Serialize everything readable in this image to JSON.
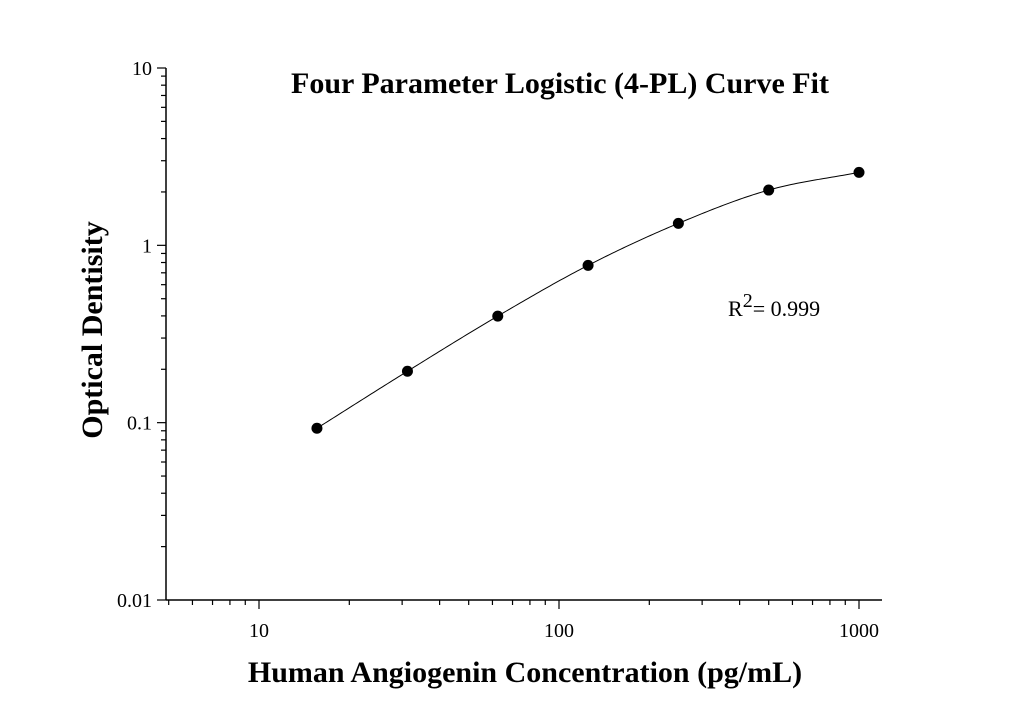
{
  "chart_data": {
    "type": "scatter",
    "title": "Four Parameter Logistic (4-PL) Curve Fit",
    "xlabel": "Human Angiogenin Concentration (pg/mL)",
    "ylabel": "Optical Dentisity",
    "x_scale": "log",
    "y_scale": "log",
    "xlim": [
      5,
      1050
    ],
    "ylim": [
      0.01,
      10
    ],
    "x_ticks": [
      10,
      100,
      1000
    ],
    "x_tick_labels": [
      "10",
      "100",
      "1000"
    ],
    "y_ticks": [
      0.01,
      0.1,
      1,
      10
    ],
    "y_tick_labels": [
      "0.01",
      "0.1",
      "1",
      "10"
    ],
    "grid": false,
    "legend": "none",
    "series": [
      {
        "x": [
          15.6,
          31.25,
          62.5,
          125,
          250,
          500,
          1000
        ],
        "y": [
          0.093,
          0.195,
          0.399,
          0.771,
          1.33,
          2.05,
          2.58
        ]
      }
    ],
    "fit_curve": {
      "model": "4-PL",
      "x_range": [
        15.6,
        1000
      ]
    },
    "annotations": {
      "r2_prefix": "R",
      "r2_superscript": "2",
      "r2_value": "= 0.999"
    },
    "colors": {
      "marker": "#000000",
      "curve": "#000000",
      "axes": "#000000"
    }
  }
}
